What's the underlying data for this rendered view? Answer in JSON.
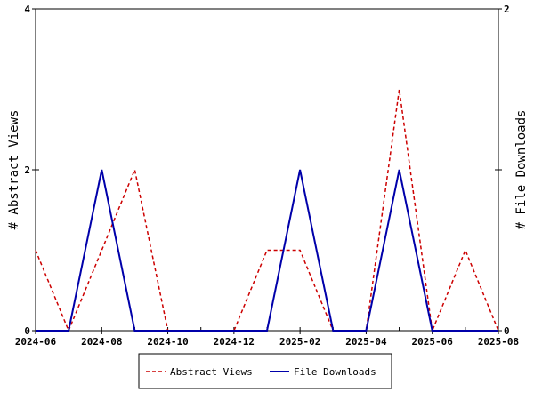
{
  "chart_data": {
    "type": "line",
    "x": [
      "2024-06",
      "2024-07",
      "2024-08",
      "2024-09",
      "2024-10",
      "2024-11",
      "2024-12",
      "2025-01",
      "2025-02",
      "2025-03",
      "2025-04",
      "2025-05",
      "2025-06",
      "2025-07",
      "2025-08"
    ],
    "x_ticks": [
      "2024-06",
      "2024-08",
      "2024-10",
      "2024-12",
      "2025-02",
      "2025-04",
      "2025-06",
      "2025-08"
    ],
    "series": [
      {
        "name": "Abstract Views",
        "axis": "left",
        "color": "#cc0000",
        "style": "dashed",
        "values": [
          1,
          0,
          1,
          2,
          0,
          0,
          0,
          1,
          1,
          0,
          0,
          3,
          0,
          1,
          0
        ]
      },
      {
        "name": "File Downloads",
        "axis": "right",
        "color": "#0000aa",
        "style": "solid",
        "values": [
          0,
          0,
          1,
          0,
          0,
          0,
          0,
          0,
          1,
          0,
          0,
          1,
          0,
          0,
          0
        ]
      }
    ],
    "ylabel_left": "# Abstract Views",
    "ylabel_right": "# File Downloads",
    "ylim_left": [
      0,
      4
    ],
    "ylim_right": [
      0,
      2
    ],
    "yticks_left": [
      "0",
      "2",
      "4"
    ],
    "yticks_right": [
      "0",
      "1",
      "2"
    ],
    "legend_position": "bottom",
    "grid": false
  }
}
